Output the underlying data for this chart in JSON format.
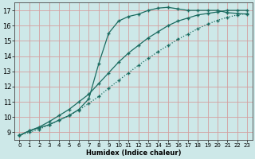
{
  "xlabel": "Humidex (Indice chaleur)",
  "bg_color": "#cde8e8",
  "grid_color": "#d4a0a0",
  "line_color": "#1a6b60",
  "xlim": [
    -0.5,
    23.5
  ],
  "ylim": [
    8.5,
    17.5
  ],
  "xticks": [
    0,
    1,
    2,
    3,
    4,
    5,
    6,
    7,
    8,
    9,
    10,
    11,
    12,
    13,
    14,
    15,
    16,
    17,
    18,
    19,
    20,
    21,
    22,
    23
  ],
  "yticks": [
    9,
    10,
    11,
    12,
    13,
    14,
    15,
    16,
    17
  ],
  "curve1_x": [
    0,
    1,
    2,
    3,
    4,
    5,
    6,
    7,
    8,
    9,
    10,
    11,
    12,
    13,
    14,
    15,
    16,
    17,
    18,
    19,
    20,
    21,
    22,
    23
  ],
  "curve1_y": [
    8.8,
    9.1,
    9.3,
    9.5,
    9.8,
    10.1,
    10.5,
    11.2,
    13.5,
    15.5,
    16.3,
    16.6,
    16.75,
    17.0,
    17.15,
    17.2,
    17.1,
    17.0,
    17.0,
    17.0,
    17.0,
    16.85,
    16.8,
    16.75
  ],
  "curve2_x": [
    0,
    1,
    2,
    3,
    4,
    5,
    6,
    7,
    8,
    9,
    10,
    11,
    12,
    13,
    14,
    15,
    16,
    17,
    18,
    19,
    20,
    21,
    22,
    23
  ],
  "curve2_y": [
    8.8,
    9.1,
    9.35,
    9.7,
    10.1,
    10.5,
    11.0,
    11.5,
    12.2,
    12.9,
    13.6,
    14.2,
    14.7,
    15.2,
    15.6,
    16.0,
    16.3,
    16.5,
    16.7,
    16.8,
    16.9,
    17.0,
    17.0,
    17.0
  ],
  "curve3_x": [
    0,
    1,
    2,
    3,
    4,
    5,
    6,
    7,
    8,
    9,
    10,
    11,
    12,
    13,
    14,
    15,
    16,
    17,
    18,
    19,
    20,
    21,
    22,
    23
  ],
  "curve3_y": [
    8.8,
    9.0,
    9.2,
    9.5,
    9.8,
    10.1,
    10.45,
    10.9,
    11.35,
    11.9,
    12.4,
    12.9,
    13.4,
    13.85,
    14.3,
    14.7,
    15.1,
    15.45,
    15.8,
    16.1,
    16.35,
    16.55,
    16.7,
    16.8
  ]
}
